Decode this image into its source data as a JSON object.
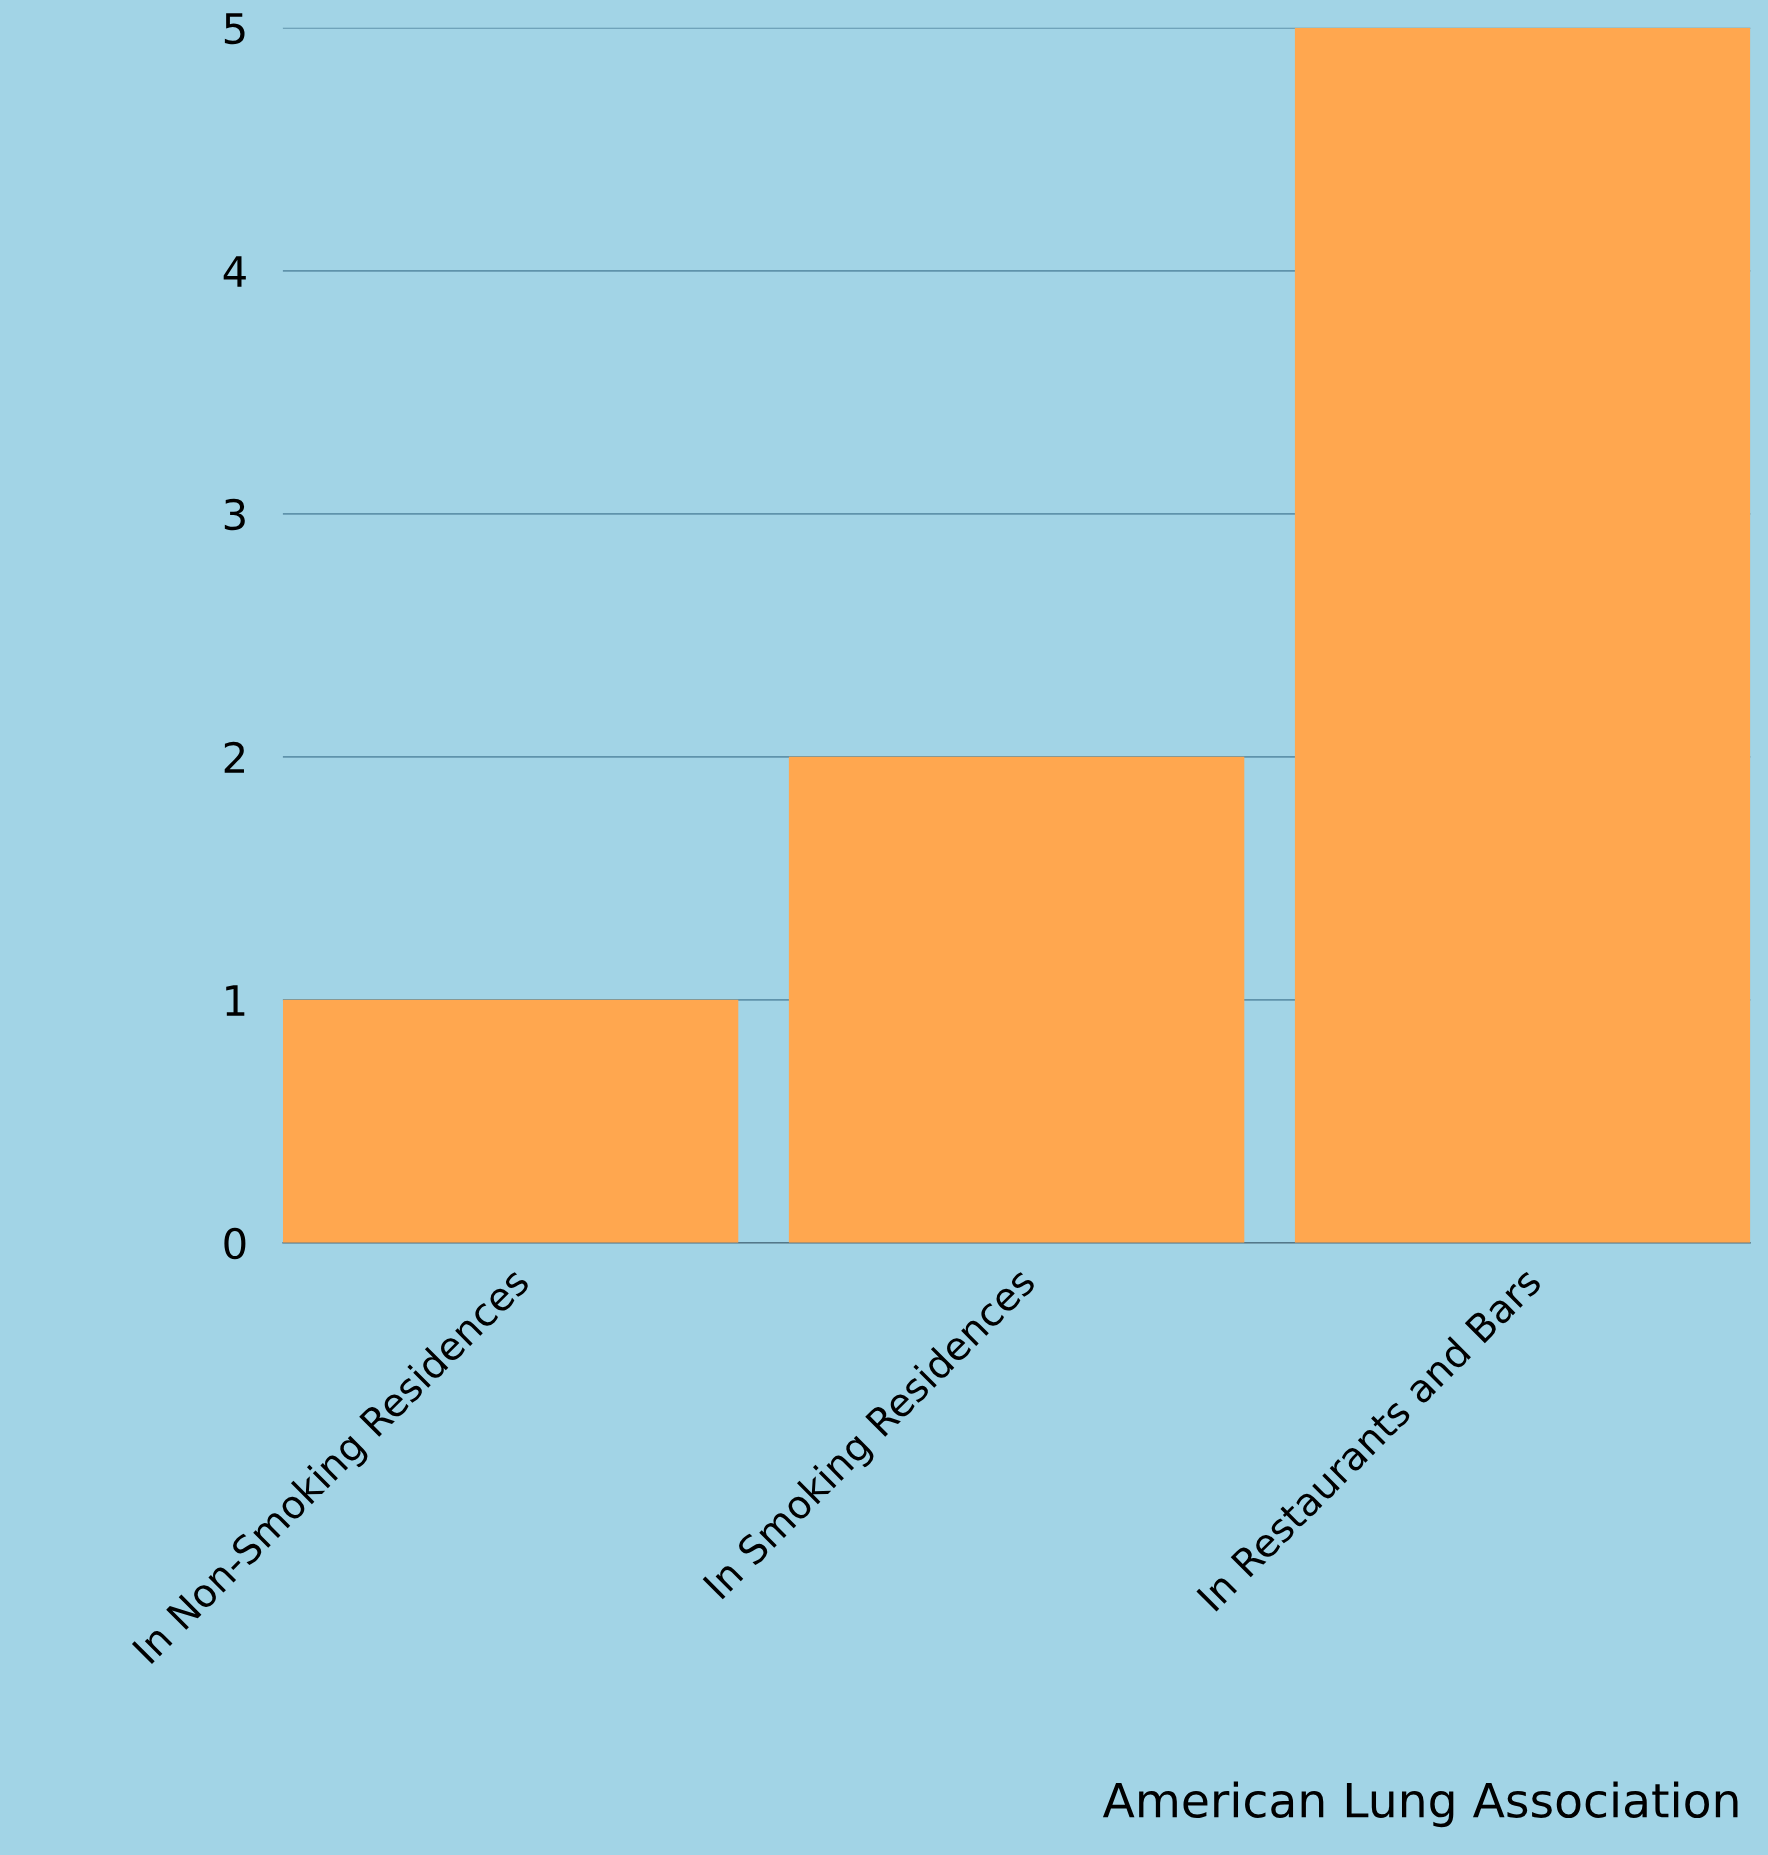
{
  "chart_data": {
    "type": "bar",
    "categories": [
      "In Non-Smoking Residences",
      "In Smoking Residences",
      "In Restaurants and Bars"
    ],
    "values": [
      1,
      2,
      5
    ],
    "color": "#ffa74f",
    "ylim": [
      0,
      5
    ],
    "yticks": [
      0,
      1,
      2,
      3,
      4,
      5
    ],
    "grid": "y",
    "legend": false,
    "annotations": [
      "American Lung Association"
    ]
  }
}
